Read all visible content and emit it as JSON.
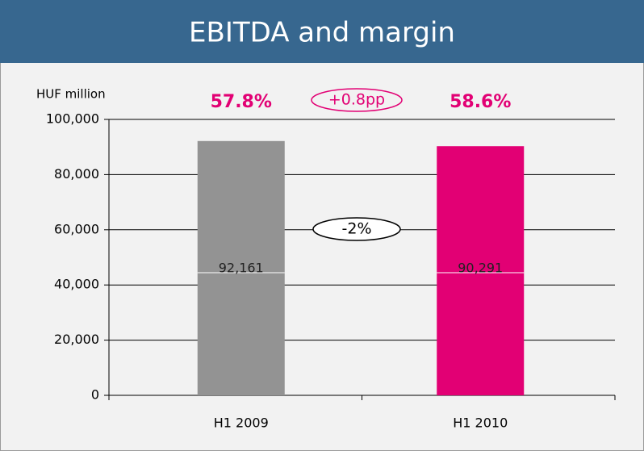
{
  "chart_data": {
    "type": "bar",
    "title": "EBITDA and margin",
    "unit_label": "HUF million",
    "categories": [
      "H1 2009",
      "H1 2010"
    ],
    "values": [
      92161,
      90291
    ],
    "value_labels": [
      "92,161",
      "90,291"
    ],
    "colors": [
      "#939393",
      "#e20074"
    ],
    "ylim": [
      0,
      100000
    ],
    "yticks": [
      0,
      {
        "value": 20000,
        "label": "20,000"
      },
      {
        "value": 40000,
        "label": "40,000"
      },
      {
        "value": 60000,
        "label": "60,000"
      },
      {
        "value": 80000,
        "label": "80,000"
      },
      {
        "value": 100000,
        "label": "100,000"
      }
    ],
    "grid": true,
    "margin_labels": [
      "57.8%",
      "58.6%"
    ],
    "margin_change": "+0.8pp",
    "value_change": "-2%"
  }
}
